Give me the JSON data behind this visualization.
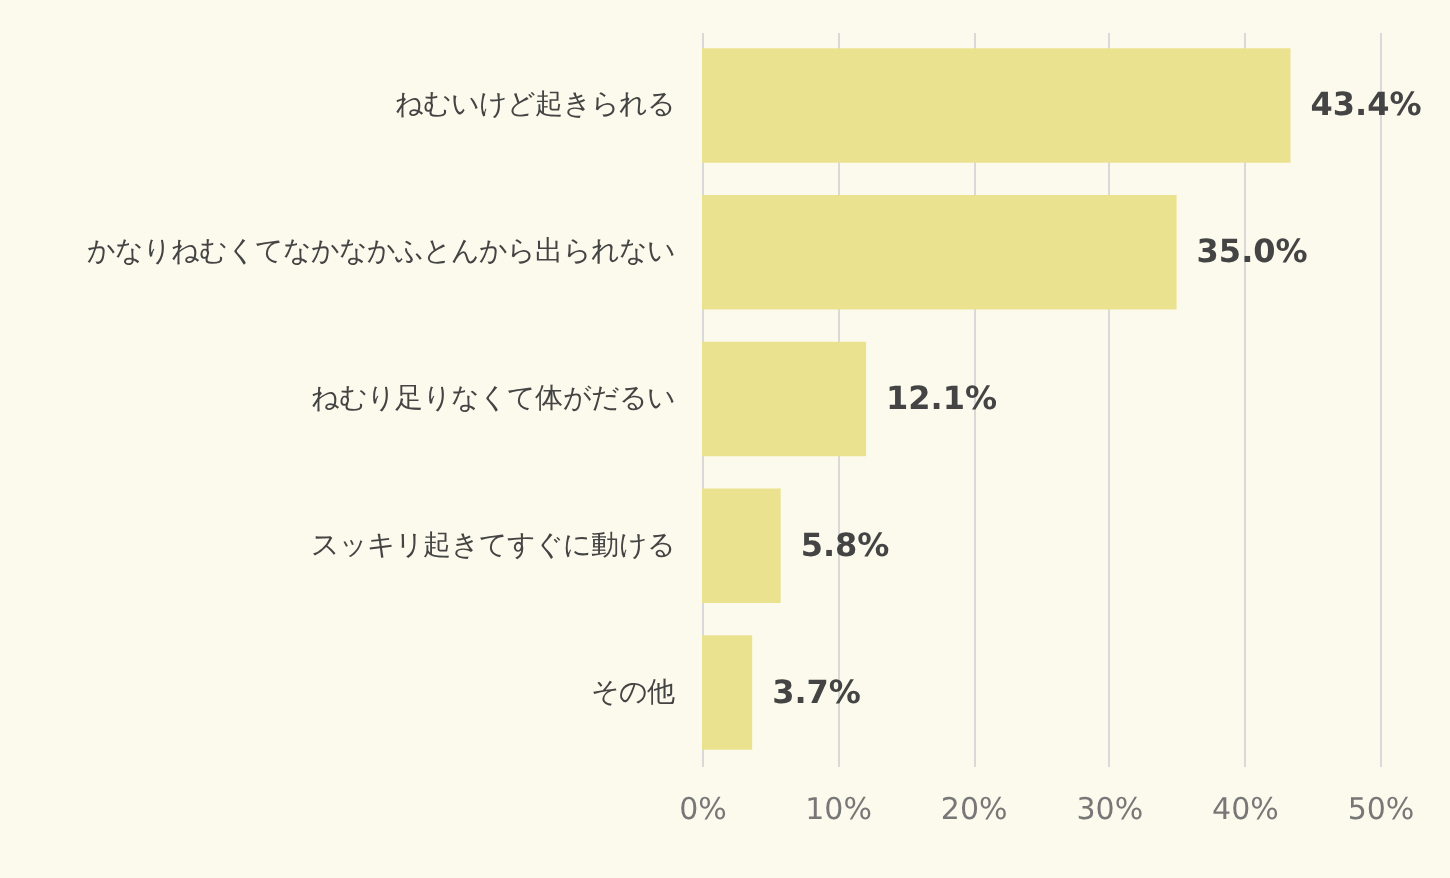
{
  "chart_data": {
    "type": "bar",
    "orientation": "horizontal",
    "categories": [
      "ねむいけど起きられる",
      "かなりねむくてなかなかふとんから出られない",
      "ねむり足りなくて体がだるい",
      "スッキリ起きてすぐに動ける",
      "その他"
    ],
    "values": [
      43.4,
      35.0,
      12.1,
      5.8,
      3.7
    ],
    "value_labels": [
      "43.4%",
      "35.0%",
      "12.1%",
      "5.8%",
      "3.7%"
    ],
    "color": "#ebe290",
    "xlim": [
      0,
      50
    ],
    "xticks": [
      {
        "value": 0,
        "label": "0%"
      },
      {
        "value": 10,
        "label": "10%"
      },
      {
        "value": 20,
        "label": "20%"
      },
      {
        "value": 30,
        "label": "30%"
      },
      {
        "value": 40,
        "label": "40%"
      },
      {
        "value": 50,
        "label": "50%"
      }
    ],
    "grid": "x"
  }
}
